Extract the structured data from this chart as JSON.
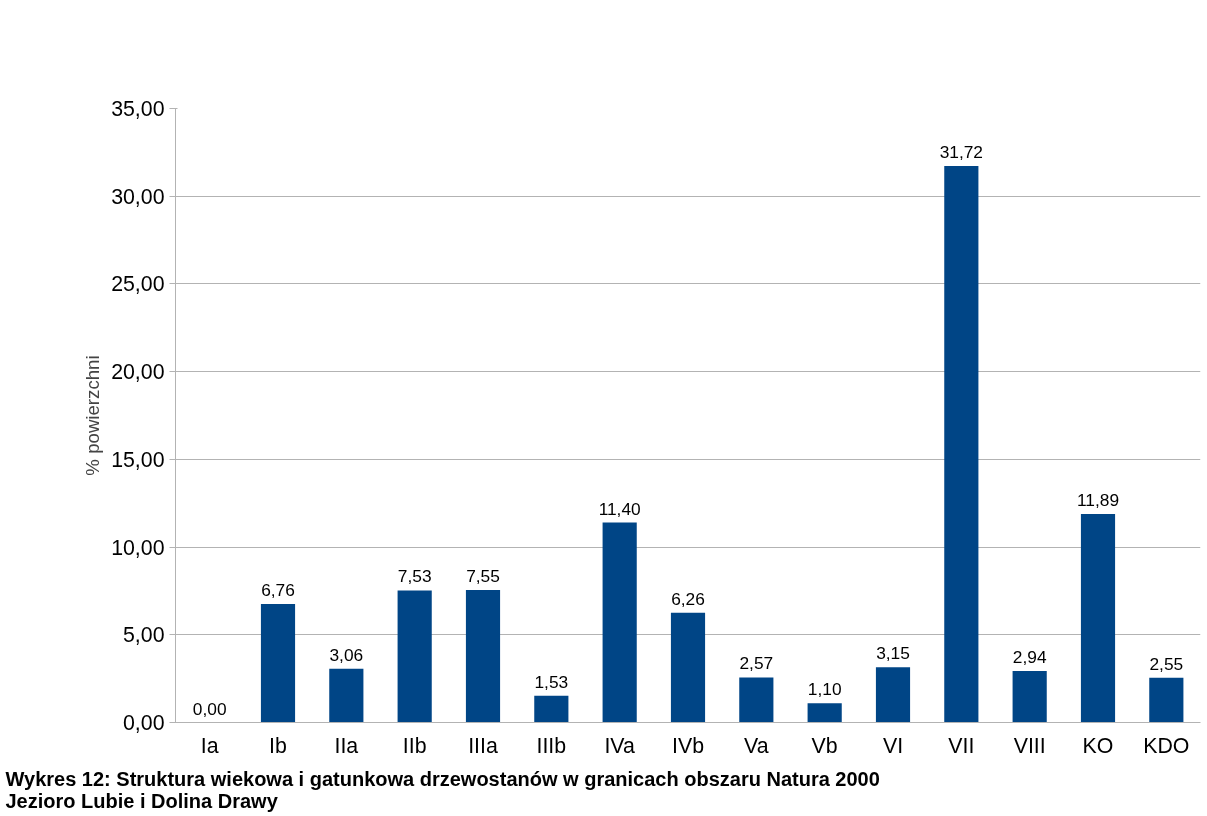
{
  "chart_data": {
    "type": "bar",
    "categories": [
      "Ia",
      "Ib",
      "IIa",
      "IIb",
      "IIIa",
      "IIIb",
      "IVa",
      "IVb",
      "Va",
      "Vb",
      "VI",
      "VII",
      "VIII",
      "KO",
      "KDO"
    ],
    "values": [
      0.0,
      6.76,
      3.06,
      7.53,
      7.55,
      1.53,
      11.4,
      6.26,
      2.57,
      1.1,
      3.15,
      31.72,
      2.94,
      11.89,
      2.55
    ],
    "value_labels": [
      "0,00",
      "6,76",
      "3,06",
      "7,53",
      "7,55",
      "1,53",
      "11,40",
      "6,26",
      "2,57",
      "1,10",
      "3,15",
      "31,72",
      "2,94",
      "11,89",
      "2,55"
    ],
    "color": "#004586",
    "ylabel": "% powierzchni",
    "ylim": [
      0,
      35
    ],
    "yticks": [
      {
        "value": 0,
        "label": "0,00"
      },
      {
        "value": 5,
        "label": "5,00"
      },
      {
        "value": 10,
        "label": "10,00"
      },
      {
        "value": 15,
        "label": "15,00"
      },
      {
        "value": 20,
        "label": "20,00"
      },
      {
        "value": 25,
        "label": "25,00"
      },
      {
        "value": 30,
        "label": "30,00"
      },
      {
        "value": 35,
        "label": "35,00"
      }
    ],
    "grid": "y",
    "annotations": [
      "Wykres 12: Struktura wiekowa i gatunkowa drzewostanów w granicach obszaru Natura 2000\nJezioro Lubie i Dolina Drawy"
    ]
  }
}
